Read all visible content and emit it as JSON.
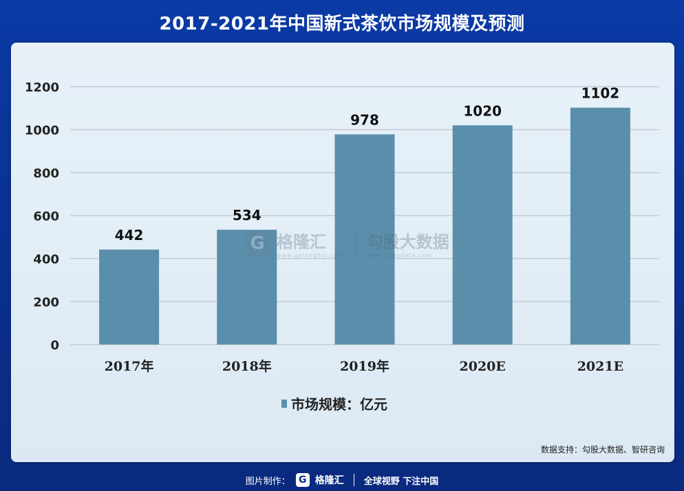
{
  "title": "2017-2021年中国新式茶饮市场规模及预测",
  "chart_data": {
    "type": "bar",
    "categories": [
      "2017年",
      "2018年",
      "2019年",
      "2020E",
      "2021E"
    ],
    "series": [
      {
        "name": "市场规模：亿元",
        "values": [
          442,
          534,
          978,
          1020,
          1102
        ]
      }
    ],
    "y_ticks": [
      0,
      200,
      400,
      600,
      800,
      1000,
      1200
    ],
    "ylim": [
      0,
      1200
    ],
    "grid": true,
    "legend": "bottom-center",
    "bar_color": "#5a8fab"
  },
  "legend_label": "市场规模：亿元",
  "source": "数据支持：勾股大数据、智研咨询",
  "watermark": {
    "logo_char": "G",
    "brand": "格隆汇",
    "brand_url": "www.gelonghui.com",
    "partner": "勾股大数据",
    "partner_url": "www.gogudata.com"
  },
  "footer": {
    "label": "图片制作：",
    "logo_char": "G",
    "brand": "格隆汇",
    "slogan": "全球视野 下注中国"
  }
}
